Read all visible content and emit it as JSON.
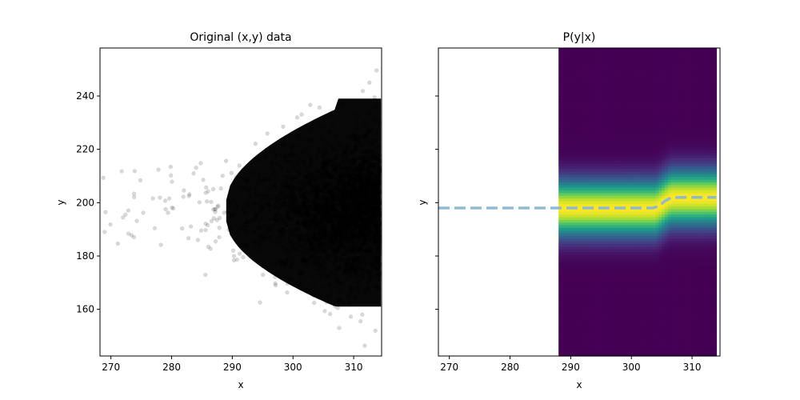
{
  "chart_data": [
    {
      "type": "scatter",
      "title": "Original (x,y) data",
      "xlabel": "x",
      "ylabel": "y",
      "xlim": [
        268.2,
        314.6
      ],
      "ylim": [
        142.5,
        258.0
      ],
      "xticks": [
        270,
        280,
        290,
        300,
        310
      ],
      "yticks": [
        160,
        180,
        200,
        220,
        240
      ],
      "color": "#000000",
      "marker_alpha": 0.15,
      "distribution": {
        "description": "dense cloud of points concentrated toward high x",
        "x_min": 268.3,
        "x_max": 314.5,
        "x_mode": 307,
        "y_center": 197,
        "y_spread": 14,
        "n_points_approx": 60000
      }
    },
    {
      "type": "heatmap",
      "title": "P(y|x)",
      "xlabel": "x",
      "ylabel": "y",
      "xlim": [
        268.2,
        314.6
      ],
      "ylim": [
        142.5,
        258.0
      ],
      "xticks": [
        270,
        280,
        290,
        300,
        310
      ],
      "yticks": [
        160,
        180,
        200,
        220,
        240
      ],
      "colormap": "viridis",
      "heatmap_x_range": [
        288.0,
        314.0
      ],
      "conditional": {
        "segments": [
          {
            "x_from": 288.0,
            "x_to": 304.0,
            "y_peak": 198.0,
            "sigma": 6.5
          },
          {
            "x_from": 306.5,
            "x_to": 314.0,
            "y_peak": 202.0,
            "sigma": 6.5
          }
        ]
      },
      "mean_line": {
        "color": "#89b8d2",
        "style": "dashed",
        "points": [
          [
            268.2,
            198.0
          ],
          [
            288.0,
            198.0
          ],
          [
            303.5,
            198.0
          ],
          [
            304.5,
            198.6
          ],
          [
            305.5,
            200.6
          ],
          [
            306.5,
            201.8
          ],
          [
            308.0,
            202.0
          ],
          [
            314.0,
            202.0
          ]
        ]
      }
    }
  ]
}
